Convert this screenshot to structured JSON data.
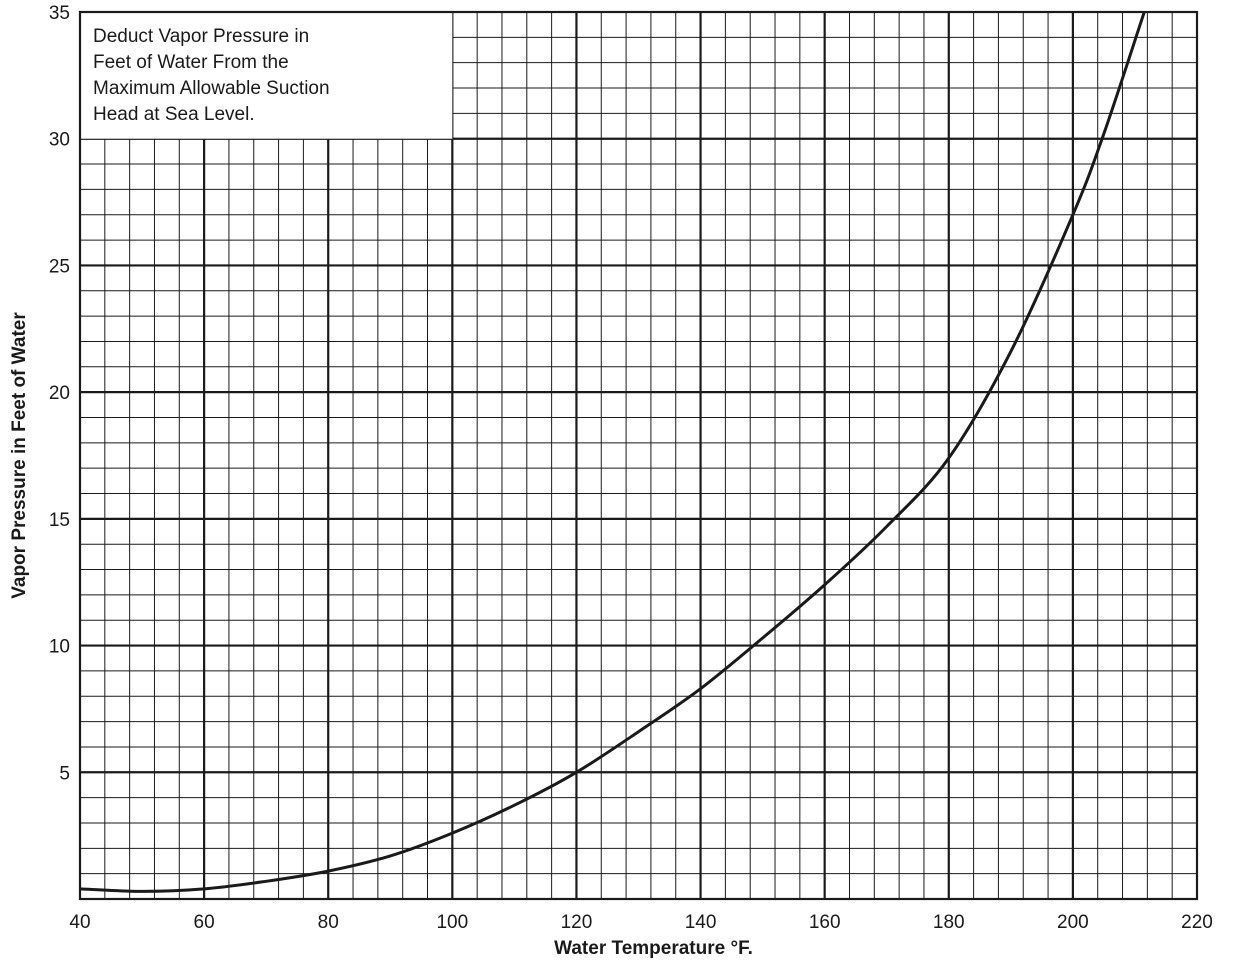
{
  "chart_data": {
    "type": "line",
    "title": "",
    "xlabel": "Water Temperature °F.",
    "ylabel": "Vapor Pressure in Feet of Water",
    "xlim": [
      40,
      220
    ],
    "ylim": [
      0,
      35
    ],
    "x_ticks": [
      40,
      60,
      80,
      100,
      120,
      140,
      160,
      180,
      200,
      220
    ],
    "y_ticks": [
      5,
      10,
      15,
      20,
      25,
      30,
      35
    ],
    "x_minor_step": 4,
    "y_minor_step": 1,
    "grid": true,
    "legend": "none",
    "line_color": "#1a1a1a",
    "annotation_lines": [
      "Deduct Vapor Pressure in",
      "Feet of Water From the",
      "Maximum Allowable Suction",
      "Head at Sea Level."
    ],
    "series": [
      {
        "x": [
          40,
          50,
          60,
          70,
          80,
          90,
          100,
          110,
          120,
          130,
          140,
          150,
          160,
          170,
          180,
          190,
          200,
          205,
          211.5
        ],
        "y": [
          0.4,
          0.3,
          0.4,
          0.7,
          1.1,
          1.7,
          2.6,
          3.7,
          5.0,
          6.6,
          8.3,
          10.3,
          12.4,
          14.7,
          17.4,
          21.6,
          27.0,
          30.2,
          35.0
        ]
      }
    ]
  }
}
